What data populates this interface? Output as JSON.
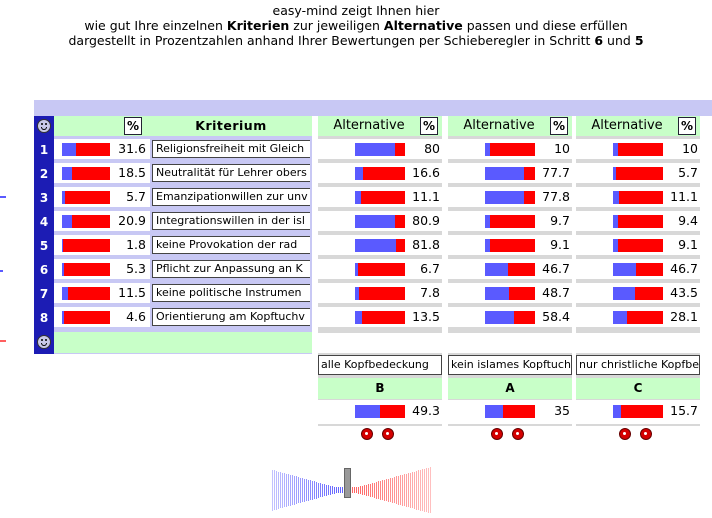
{
  "header": {
    "line1": "easy-mind zeigt Ihnen hier",
    "line2_a": "wie gut Ihre einzelnen ",
    "line2_b": "Kriterien",
    "line2_c": " zur jeweiligen ",
    "line2_d": "Alternative",
    "line2_e": " passen und diese erfüllen",
    "line3_a": "dargestellt in Prozentzahlen anhand Ihrer Bewertungen per Schieberegler in Schritt ",
    "line3_b": "6",
    "line3_c": " und ",
    "line3_d": "5"
  },
  "table": {
    "pct_symbol": "%",
    "criterion_header": "Kriterium",
    "alternative_header": "Alternative",
    "rows": [
      {
        "num": "1",
        "weight": 31.6,
        "weight_label": "31.6",
        "blue": 0.3,
        "criterion": "Religionsfreiheit mit Gleich"
      },
      {
        "num": "2",
        "weight": 18.5,
        "weight_label": "18.5",
        "blue": 0.2,
        "criterion": "Neutralität für Lehrer obers"
      },
      {
        "num": "3",
        "weight": 5.7,
        "weight_label": "5.7",
        "blue": 0.06,
        "criterion": "Emanzipationwillen zur unv"
      },
      {
        "num": "4",
        "weight": 20.9,
        "weight_label": "20.9",
        "blue": 0.21,
        "criterion": "Integrationswillen in der isl"
      },
      {
        "num": "5",
        "weight": 1.8,
        "weight_label": "1.8",
        "blue": 0.02,
        "criterion": "keine Provokation der rad"
      },
      {
        "num": "6",
        "weight": 5.3,
        "weight_label": "5.3",
        "blue": 0.05,
        "criterion": "Pflicht zur Anpassung an K"
      },
      {
        "num": "7",
        "weight": 11.5,
        "weight_label": "11.5",
        "blue": 0.12,
        "criterion": "keine politische Instrumen"
      },
      {
        "num": "8",
        "weight": 4.6,
        "weight_label": "4.6",
        "blue": 0.05,
        "criterion": "Orientierung am Kopftuchv"
      }
    ],
    "alternatives": [
      {
        "name": "alle Kopfbedeckung",
        "letter": "B",
        "total": 49.3,
        "total_label": "49.3",
        "values": [
          80,
          16.6,
          11.1,
          80.9,
          81.8,
          6.7,
          7.8,
          13.5
        ],
        "labels": [
          "80",
          "16.6",
          "11.1",
          "80.9",
          "81.8",
          "6.7",
          "7.8",
          "13.5"
        ]
      },
      {
        "name": "kein islames Kopftuch",
        "letter": "A",
        "total": 35,
        "total_label": "35",
        "values": [
          10,
          77.7,
          77.8,
          9.7,
          9.1,
          46.7,
          48.7,
          58.4
        ],
        "labels": [
          "10",
          "77.7",
          "77.8",
          "9.7",
          "9.1",
          "46.7",
          "48.7",
          "58.4"
        ]
      },
      {
        "name": "nur christliche Kopfbe",
        "letter": "C",
        "total": 15.7,
        "total_label": "15.7",
        "values": [
          10,
          5.7,
          11.1,
          9.4,
          9.1,
          46.7,
          43.5,
          28.1
        ],
        "labels": [
          "10",
          "5.7",
          "11.1",
          "9.4",
          "9.1",
          "46.7",
          "43.5",
          "28.1"
        ]
      }
    ]
  },
  "colors": {
    "bar_red": "#ff0000",
    "bar_blue": "#5a5aff",
    "number_column": "#1c1cb4",
    "header_green": "#c8ffc8",
    "band_lavender": "#c8c8f4"
  },
  "icons": {
    "smiley": "smiley-icon",
    "ball": "red-ball-icon",
    "slider": "balance-slider-icon"
  }
}
